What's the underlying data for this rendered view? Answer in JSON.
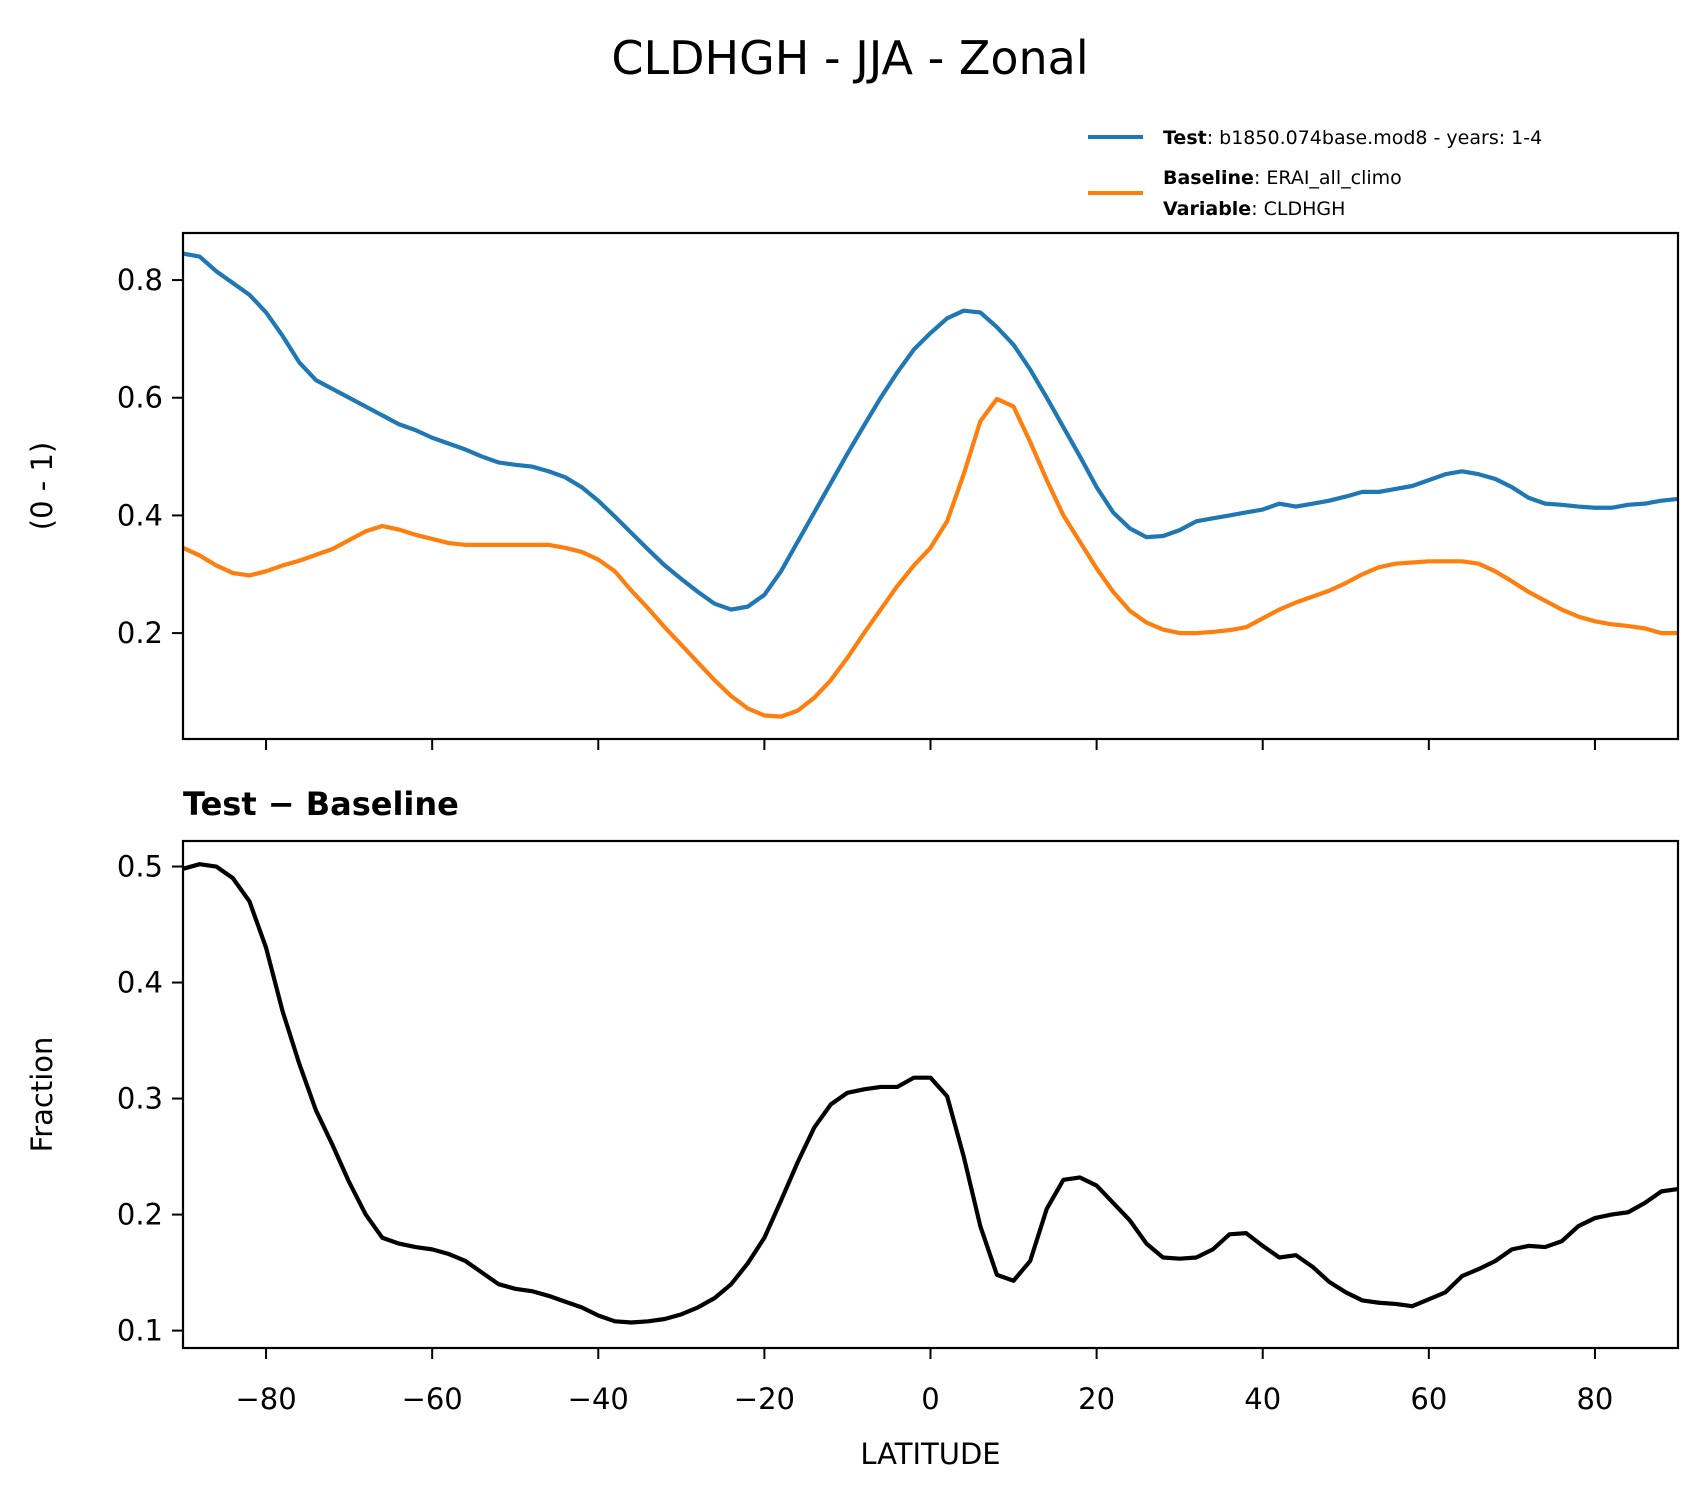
{
  "title": "CLDHGH - JJA - Zonal",
  "legend": {
    "test_key": "Test",
    "test_value": ": b1850.074base.mod8 - years: 1-4",
    "baseline_key": "Baseline",
    "baseline_value": ": ERAI_all_climo",
    "variable_key": "Variable",
    "variable_value": ": CLDHGH"
  },
  "chart_data": [
    {
      "type": "line",
      "title": "",
      "xlabel": "",
      "ylabel": "(0 - 1)",
      "xlim": [
        -90,
        90
      ],
      "ylim": [
        0.02,
        0.88
      ],
      "xticks": [
        -80,
        -60,
        -40,
        -20,
        0,
        20,
        40,
        60,
        80
      ],
      "xtick_labels_shown": false,
      "yticks": [
        0.2,
        0.4,
        0.6,
        0.8
      ],
      "ytick_labels": [
        "0.2",
        "0.4",
        "0.6",
        "0.8"
      ],
      "grid": false,
      "legend_position": "top-right, above axes",
      "series": [
        {
          "name": "Test",
          "color": "#1f77b4",
          "x": [
            -90,
            -88,
            -86,
            -84,
            -82,
            -80,
            -78,
            -76,
            -74,
            -72,
            -70,
            -68,
            -66,
            -64,
            -62,
            -60,
            -58,
            -56,
            -54,
            -52,
            -50,
            -48,
            -46,
            -44,
            -42,
            -40,
            -38,
            -36,
            -34,
            -32,
            -30,
            -28,
            -26,
            -24,
            -22,
            -20,
            -18,
            -16,
            -14,
            -12,
            -10,
            -8,
            -6,
            -4,
            -2,
            0,
            2,
            4,
            6,
            8,
            10,
            12,
            14,
            16,
            18,
            20,
            22,
            24,
            26,
            28,
            30,
            32,
            34,
            36,
            38,
            40,
            42,
            44,
            46,
            48,
            50,
            52,
            54,
            56,
            58,
            60,
            62,
            64,
            66,
            68,
            70,
            72,
            74,
            76,
            78,
            80,
            82,
            84,
            86,
            88,
            90
          ],
          "y": [
            0.845,
            0.84,
            0.815,
            0.795,
            0.775,
            0.745,
            0.705,
            0.66,
            0.63,
            0.615,
            0.6,
            0.585,
            0.57,
            0.555,
            0.545,
            0.532,
            0.522,
            0.512,
            0.5,
            0.49,
            0.486,
            0.483,
            0.475,
            0.465,
            0.448,
            0.425,
            0.398,
            0.37,
            0.342,
            0.315,
            0.292,
            0.27,
            0.25,
            0.24,
            0.245,
            0.265,
            0.305,
            0.355,
            0.405,
            0.455,
            0.505,
            0.553,
            0.6,
            0.643,
            0.682,
            0.71,
            0.735,
            0.748,
            0.745,
            0.72,
            0.69,
            0.648,
            0.6,
            0.55,
            0.5,
            0.448,
            0.405,
            0.378,
            0.363,
            0.365,
            0.375,
            0.39,
            0.395,
            0.4,
            0.405,
            0.41,
            0.42,
            0.415,
            0.42,
            0.425,
            0.432,
            0.44,
            0.44,
            0.445,
            0.45,
            0.46,
            0.47,
            0.475,
            0.47,
            0.462,
            0.448,
            0.43,
            0.42,
            0.418,
            0.415,
            0.413,
            0.413,
            0.418,
            0.42,
            0.425,
            0.428
          ]
        },
        {
          "name": "Baseline",
          "color": "#ff7f0e",
          "x": [
            -90,
            -88,
            -86,
            -84,
            -82,
            -80,
            -78,
            -76,
            -74,
            -72,
            -70,
            -68,
            -66,
            -64,
            -62,
            -60,
            -58,
            -56,
            -54,
            -52,
            -50,
            -48,
            -46,
            -44,
            -42,
            -40,
            -38,
            -36,
            -34,
            -32,
            -30,
            -28,
            -26,
            -24,
            -22,
            -20,
            -18,
            -16,
            -14,
            -12,
            -10,
            -8,
            -6,
            -4,
            -2,
            0,
            2,
            4,
            6,
            8,
            10,
            12,
            14,
            16,
            18,
            20,
            22,
            24,
            26,
            28,
            30,
            32,
            34,
            36,
            38,
            40,
            42,
            44,
            46,
            48,
            50,
            52,
            54,
            56,
            58,
            60,
            62,
            64,
            66,
            68,
            70,
            72,
            74,
            76,
            78,
            80,
            82,
            84,
            86,
            88,
            90
          ],
          "y": [
            0.345,
            0.332,
            0.315,
            0.302,
            0.298,
            0.305,
            0.315,
            0.323,
            0.333,
            0.343,
            0.358,
            0.373,
            0.382,
            0.376,
            0.367,
            0.36,
            0.353,
            0.35,
            0.35,
            0.35,
            0.35,
            0.35,
            0.35,
            0.345,
            0.338,
            0.325,
            0.305,
            0.272,
            0.242,
            0.21,
            0.18,
            0.15,
            0.12,
            0.093,
            0.072,
            0.06,
            0.058,
            0.068,
            0.09,
            0.12,
            0.158,
            0.2,
            0.24,
            0.28,
            0.315,
            0.345,
            0.39,
            0.47,
            0.56,
            0.598,
            0.585,
            0.525,
            0.46,
            0.4,
            0.355,
            0.31,
            0.27,
            0.238,
            0.218,
            0.206,
            0.2,
            0.2,
            0.202,
            0.205,
            0.21,
            0.225,
            0.24,
            0.252,
            0.262,
            0.272,
            0.285,
            0.3,
            0.312,
            0.318,
            0.32,
            0.322,
            0.322,
            0.322,
            0.318,
            0.305,
            0.288,
            0.27,
            0.255,
            0.24,
            0.228,
            0.22,
            0.215,
            0.212,
            0.208,
            0.2,
            0.2
          ]
        }
      ]
    },
    {
      "type": "line",
      "title": "Test − Baseline",
      "xlabel": "LATITUDE",
      "ylabel": "Fraction",
      "xlim": [
        -90,
        90
      ],
      "ylim": [
        0.085,
        0.522
      ],
      "xticks": [
        -80,
        -60,
        -40,
        -20,
        0,
        20,
        40,
        60,
        80
      ],
      "xtick_labels": [
        "−80",
        "−60",
        "−40",
        "−20",
        "0",
        "20",
        "40",
        "60",
        "80"
      ],
      "yticks": [
        0.1,
        0.2,
        0.3,
        0.4,
        0.5
      ],
      "ytick_labels": [
        "0.1",
        "0.2",
        "0.3",
        "0.4",
        "0.5"
      ],
      "grid": false,
      "series": [
        {
          "color": "#000000",
          "x": [
            -90,
            -88,
            -86,
            -84,
            -82,
            -80,
            -78,
            -76,
            -74,
            -72,
            -70,
            -68,
            -66,
            -64,
            -62,
            -60,
            -58,
            -56,
            -54,
            -52,
            -50,
            -48,
            -46,
            -44,
            -42,
            -40,
            -38,
            -36,
            -34,
            -32,
            -30,
            -28,
            -26,
            -24,
            -22,
            -20,
            -18,
            -16,
            -14,
            -12,
            -10,
            -8,
            -6,
            -4,
            -2,
            0,
            2,
            4,
            6,
            8,
            10,
            12,
            14,
            16,
            18,
            20,
            22,
            24,
            26,
            28,
            30,
            32,
            34,
            36,
            38,
            40,
            42,
            44,
            46,
            48,
            50,
            52,
            54,
            56,
            58,
            60,
            62,
            64,
            66,
            68,
            70,
            72,
            74,
            76,
            78,
            80,
            82,
            84,
            86,
            88,
            90
          ],
          "y": [
            0.498,
            0.502,
            0.5,
            0.49,
            0.47,
            0.43,
            0.375,
            0.33,
            0.29,
            0.26,
            0.228,
            0.2,
            0.18,
            0.175,
            0.172,
            0.17,
            0.166,
            0.16,
            0.15,
            0.14,
            0.136,
            0.134,
            0.13,
            0.125,
            0.12,
            0.113,
            0.108,
            0.107,
            0.108,
            0.11,
            0.114,
            0.12,
            0.128,
            0.14,
            0.158,
            0.18,
            0.212,
            0.245,
            0.275,
            0.295,
            0.305,
            0.308,
            0.31,
            0.31,
            0.318,
            0.318,
            0.302,
            0.25,
            0.19,
            0.148,
            0.143,
            0.16,
            0.205,
            0.23,
            0.232,
            0.225,
            0.21,
            0.195,
            0.175,
            0.163,
            0.162,
            0.163,
            0.17,
            0.183,
            0.184,
            0.173,
            0.163,
            0.165,
            0.155,
            0.142,
            0.133,
            0.126,
            0.124,
            0.123,
            0.121,
            0.127,
            0.133,
            0.147,
            0.153,
            0.16,
            0.17,
            0.173,
            0.172,
            0.177,
            0.19,
            0.197,
            0.2,
            0.202,
            0.21,
            0.22,
            0.222
          ]
        }
      ]
    }
  ]
}
